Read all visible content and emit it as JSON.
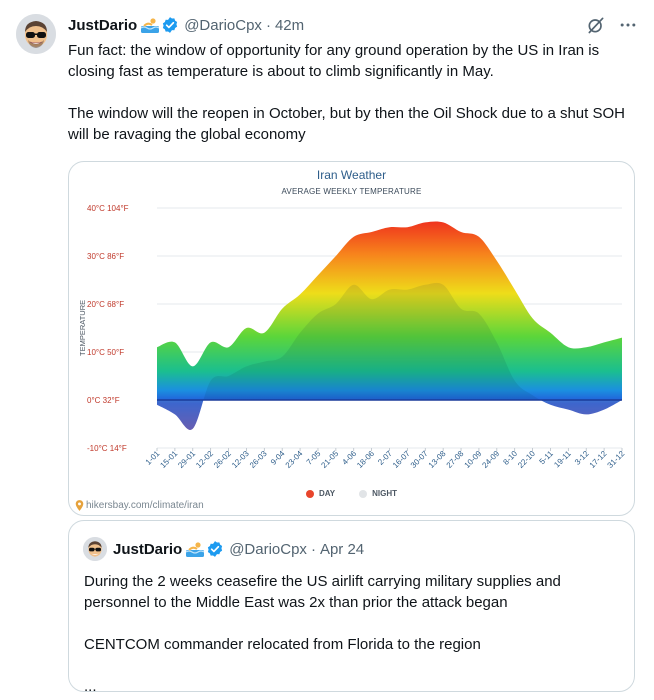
{
  "tweet": {
    "author_name": "JustDario",
    "handle": "@DarioCpx",
    "separator": "·",
    "time": "42m",
    "paragraphs": [
      "Fun fact: the window of opportunity for any ground operation by the US in Iran is closing fast as temperature is about to climb significantly in May.",
      "The window will the reopen in October, but by then the Oil Shock due to a shut SOH will be ravaging the global economy"
    ],
    "icons": {
      "verified": "verified-badge-icon",
      "grok": "grok-icon",
      "more": "more-icon",
      "swim_emoji": "swimmer-emoji"
    }
  },
  "media": {
    "source": "hikersbay.com/climate/iran"
  },
  "chart_data": {
    "type": "area",
    "title": "Iran Weather",
    "subtitle": "AVERAGE WEEKLY TEMPERATURE",
    "ylabel": "TEMPERATURE",
    "ylim": [
      -10,
      40
    ],
    "y_ticks": [
      {
        "value": 40,
        "label": "40°C 104°F"
      },
      {
        "value": 30,
        "label": "30°C 86°F"
      },
      {
        "value": 20,
        "label": "20°C 68°F"
      },
      {
        "value": 10,
        "label": "10°C 50°F"
      },
      {
        "value": 0,
        "label": "0°C 32°F"
      },
      {
        "value": -10,
        "label": "-10°C 14°F"
      }
    ],
    "x_labels": [
      "1-01",
      "15-01",
      "29-01",
      "12-02",
      "26-02",
      "12-03",
      "26-03",
      "9-04",
      "23-04",
      "7-05",
      "21-05",
      "4-06",
      "18-06",
      "2-07",
      "16-07",
      "30-07",
      "13-08",
      "27-08",
      "10-09",
      "24-09",
      "8-10",
      "22-10",
      "5-11",
      "19-11",
      "3-12",
      "17-12",
      "31-12"
    ],
    "legend": [
      "DAY",
      "NIGHT"
    ],
    "legend_colors": {
      "DAY": "#e8452c",
      "NIGHT": "#e1e4e7"
    },
    "series": [
      {
        "name": "DAY",
        "values": [
          11,
          12,
          7,
          12,
          11,
          15,
          14,
          19,
          22,
          26,
          30,
          34,
          35,
          36,
          36,
          37,
          37,
          35,
          34,
          29,
          23,
          17,
          14,
          11,
          11,
          12,
          13
        ]
      },
      {
        "name": "NIGHT",
        "values": [
          -1,
          -3,
          -6,
          4,
          5,
          7,
          8,
          9,
          14,
          18,
          20,
          24,
          21,
          23,
          23,
          24,
          24,
          19,
          18,
          12,
          4,
          1,
          -1,
          -2,
          -3,
          -2,
          0
        ]
      }
    ]
  },
  "quote": {
    "author_name": "JustDario",
    "handle": "@DarioCpx",
    "separator": "·",
    "date": "Apr 24",
    "paragraphs": [
      "During the 2 weeks ceasefire the US airlift carrying military supplies and personnel to the Middle East was 2x than prior the attack began",
      "CENTCOM commander relocated from Florida to the region",
      "..."
    ]
  }
}
